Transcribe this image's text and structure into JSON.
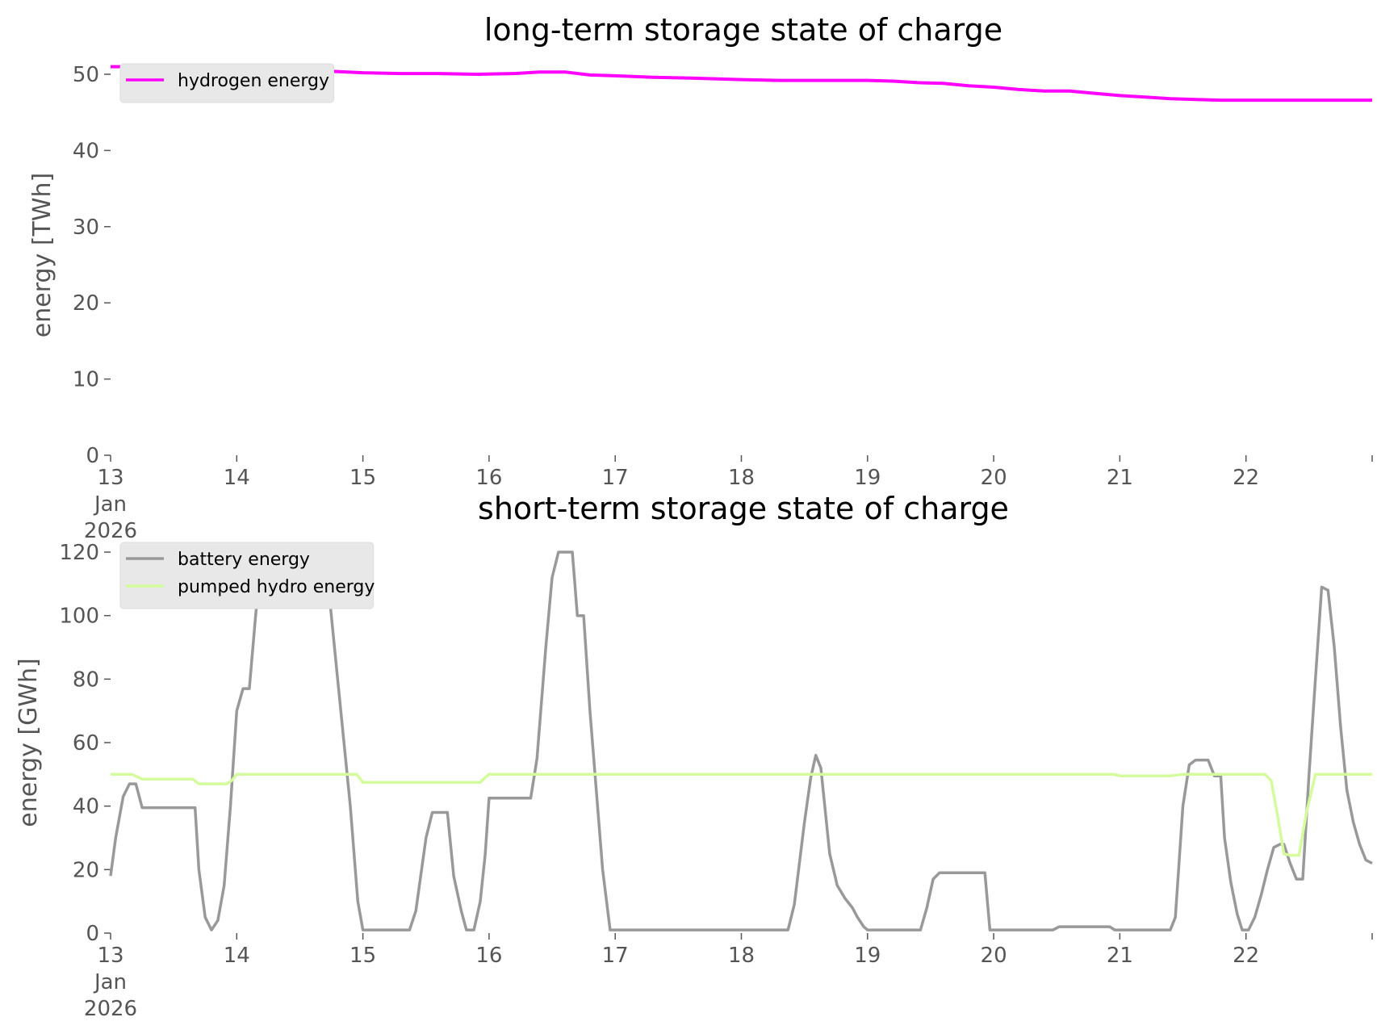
{
  "colors": {
    "hydrogen": "#ff00ff",
    "battery": "#999999",
    "pumped_hydro": "#d4fb9c",
    "axis_text": "#555555",
    "legend_bg": "#e8e8e8"
  },
  "chart_data": [
    {
      "type": "line",
      "title": "long-term storage state of charge",
      "xlabel": "",
      "ylabel": "energy [TWh]",
      "xlim": [
        13.0,
        23.0
      ],
      "ylim": [
        0,
        50
      ],
      "yticks": [
        0,
        10,
        20,
        30,
        40,
        50
      ],
      "xticks": [
        {
          "x": 13,
          "label": "13",
          "label2": "Jan",
          "label3": "2026"
        },
        {
          "x": 14,
          "label": "14"
        },
        {
          "x": 15,
          "label": "15"
        },
        {
          "x": 16,
          "label": "16"
        },
        {
          "x": 17,
          "label": "17"
        },
        {
          "x": 18,
          "label": "18"
        },
        {
          "x": 19,
          "label": "19"
        },
        {
          "x": 20,
          "label": "20"
        },
        {
          "x": 21,
          "label": "21"
        },
        {
          "x": 22,
          "label": "22"
        }
      ],
      "grid": false,
      "legend_position": "upper-left",
      "series": [
        {
          "name": "hydrogen energy",
          "color": "#ff00ff",
          "x": [
            13.0,
            13.2,
            13.5,
            13.8,
            14.0,
            14.3,
            14.6,
            15.0,
            15.3,
            15.6,
            15.9,
            16.2,
            16.4,
            16.6,
            16.8,
            17.0,
            17.3,
            17.6,
            18.0,
            18.3,
            18.6,
            19.0,
            19.2,
            19.4,
            19.6,
            19.8,
            20.0,
            20.2,
            20.4,
            20.6,
            20.8,
            21.0,
            21.2,
            21.4,
            21.6,
            21.8,
            22.0,
            22.3,
            22.6,
            23.0
          ],
          "y": [
            51.0,
            51.0,
            50.8,
            50.7,
            50.6,
            50.5,
            50.5,
            50.2,
            50.1,
            50.1,
            50.0,
            50.1,
            50.3,
            50.3,
            49.9,
            49.8,
            49.6,
            49.5,
            49.3,
            49.2,
            49.2,
            49.2,
            49.1,
            48.9,
            48.8,
            48.5,
            48.3,
            48.0,
            47.8,
            47.8,
            47.5,
            47.2,
            47.0,
            46.8,
            46.7,
            46.6,
            46.6,
            46.6,
            46.6,
            46.6
          ]
        }
      ]
    },
    {
      "type": "line",
      "title": "short-term storage state of charge",
      "xlabel": "",
      "ylabel": "energy [GWh]",
      "xlim": [
        13.0,
        23.0
      ],
      "ylim": [
        0,
        120
      ],
      "yticks": [
        0,
        20,
        40,
        60,
        80,
        100,
        120
      ],
      "xticks": [
        {
          "x": 13,
          "label": "13",
          "label2": "Jan",
          "label3": "2026"
        },
        {
          "x": 14,
          "label": "14"
        },
        {
          "x": 15,
          "label": "15"
        },
        {
          "x": 16,
          "label": "16"
        },
        {
          "x": 17,
          "label": "17"
        },
        {
          "x": 18,
          "label": "18"
        },
        {
          "x": 19,
          "label": "19"
        },
        {
          "x": 20,
          "label": "20"
        },
        {
          "x": 21,
          "label": "21"
        },
        {
          "x": 22,
          "label": "22"
        }
      ],
      "grid": false,
      "legend_position": "upper-left",
      "series": [
        {
          "name": "battery energy",
          "color": "#999999",
          "x": [
            13.0,
            13.04,
            13.1,
            13.15,
            13.2,
            13.25,
            13.4,
            13.55,
            13.67,
            13.7,
            13.75,
            13.8,
            13.85,
            13.9,
            13.95,
            14.0,
            14.05,
            14.1,
            14.15,
            14.2,
            14.3,
            14.4,
            14.5,
            14.6,
            14.7,
            14.8,
            14.9,
            14.96,
            15.0,
            15.2,
            15.37,
            15.42,
            15.5,
            15.55,
            15.65,
            15.67,
            15.72,
            15.78,
            15.82,
            15.88,
            15.93,
            15.97,
            16.0,
            16.2,
            16.33,
            16.38,
            16.45,
            16.5,
            16.55,
            16.66,
            16.7,
            16.75,
            16.8,
            16.9,
            16.96,
            17.0,
            17.5,
            18.0,
            18.2,
            18.37,
            18.42,
            18.5,
            18.55,
            18.59,
            18.63,
            18.7,
            18.76,
            18.82,
            18.88,
            18.92,
            18.97,
            19.0,
            19.2,
            19.42,
            19.47,
            19.52,
            19.57,
            19.7,
            19.9,
            19.93,
            19.97,
            20.0,
            20.3,
            20.47,
            20.52,
            20.7,
            20.88,
            20.92,
            20.96,
            21.0,
            21.2,
            21.4,
            21.44,
            21.5,
            21.55,
            21.6,
            21.7,
            21.75,
            21.8,
            21.83,
            21.88,
            21.93,
            21.97,
            22.02,
            22.07,
            22.12,
            22.17,
            22.22,
            22.27,
            22.3,
            22.35,
            22.4,
            22.45,
            22.5,
            22.55,
            22.6,
            22.65,
            22.7,
            22.75,
            22.8,
            22.85,
            22.9,
            22.95,
            23.0
          ],
          "y": [
            18,
            30,
            43,
            47,
            47,
            39.5,
            39.5,
            39.5,
            39.5,
            20,
            5,
            1,
            4,
            15,
            40,
            70,
            77,
            77,
            100,
            120,
            120,
            120,
            120,
            120,
            120,
            80,
            40,
            10,
            1,
            1,
            1,
            7,
            30,
            38,
            38,
            38,
            18,
            7,
            1,
            1,
            10,
            25,
            42.5,
            42.5,
            42.5,
            55,
            90,
            112,
            120,
            120,
            100,
            100,
            70,
            20,
            1,
            1,
            1,
            1,
            1,
            1,
            9,
            35,
            49,
            56,
            52,
            25,
            15,
            11,
            8,
            5,
            2,
            1,
            1,
            1,
            8,
            17,
            19,
            19,
            19,
            19,
            1,
            1,
            1,
            1,
            2,
            2,
            2,
            2,
            1,
            1,
            1,
            1,
            5,
            40,
            53,
            54.5,
            54.5,
            49.5,
            49.5,
            30,
            16,
            6,
            1,
            1,
            5,
            12,
            20,
            27,
            28,
            28,
            22,
            17,
            17,
            50,
            80,
            109,
            108,
            90,
            65,
            45,
            35,
            28,
            23,
            22
          ]
        },
        {
          "name": "pumped hydro energy",
          "color": "#d4fb9c",
          "x": [
            13.0,
            13.17,
            13.25,
            13.65,
            13.7,
            13.92,
            13.96,
            14.0,
            14.95,
            15.0,
            15.8,
            15.93,
            15.97,
            16.0,
            20.95,
            21.0,
            21.4,
            21.5,
            21.55,
            22.15,
            22.2,
            22.25,
            22.3,
            22.35,
            22.42,
            22.48,
            22.55,
            22.6,
            23.0
          ],
          "y": [
            50,
            50,
            48.5,
            48.5,
            47,
            47,
            48,
            50,
            50,
            47.5,
            47.5,
            47.5,
            49,
            50,
            50,
            49.5,
            49.5,
            50,
            50,
            50,
            48,
            37,
            25,
            24.5,
            24.5,
            38,
            50,
            50,
            50
          ]
        }
      ]
    }
  ]
}
